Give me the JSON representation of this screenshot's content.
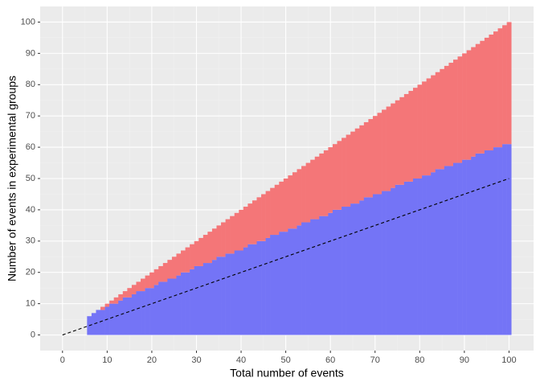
{
  "chart_data": {
    "type": "bar",
    "stacked": true,
    "x_label": "Total number of events",
    "y_label": "Number of events in experimental groups",
    "x": [
      6,
      7,
      8,
      9,
      10,
      11,
      12,
      13,
      14,
      15,
      16,
      17,
      18,
      19,
      20,
      21,
      22,
      23,
      24,
      25,
      26,
      27,
      28,
      29,
      30,
      31,
      32,
      33,
      34,
      35,
      36,
      37,
      38,
      39,
      40,
      41,
      42,
      43,
      44,
      45,
      46,
      47,
      48,
      49,
      50,
      51,
      52,
      53,
      54,
      55,
      56,
      57,
      58,
      59,
      60,
      61,
      62,
      63,
      64,
      65,
      66,
      67,
      68,
      69,
      70,
      71,
      72,
      73,
      74,
      75,
      76,
      77,
      78,
      79,
      80,
      81,
      82,
      83,
      84,
      85,
      86,
      87,
      88,
      89,
      90,
      91,
      92,
      93,
      94,
      95,
      96,
      97,
      98,
      99,
      100
    ],
    "series": [
      {
        "color": "#7474f6",
        "values": [
          6,
          7,
          8,
          8,
          9,
          10,
          10,
          11,
          12,
          12,
          13,
          14,
          14,
          15,
          15,
          16,
          17,
          17,
          18,
          18,
          19,
          20,
          20,
          21,
          22,
          22,
          23,
          23,
          24,
          25,
          25,
          26,
          26,
          27,
          27,
          28,
          29,
          29,
          30,
          30,
          31,
          32,
          32,
          33,
          33,
          34,
          34,
          35,
          36,
          36,
          37,
          37,
          38,
          38,
          39,
          40,
          40,
          41,
          41,
          42,
          42,
          43,
          44,
          44,
          45,
          45,
          46,
          46,
          47,
          48,
          48,
          49,
          49,
          50,
          50,
          51,
          51,
          52,
          53,
          53,
          54,
          54,
          55,
          55,
          56,
          56,
          57,
          58,
          58,
          59,
          59,
          60,
          60,
          61,
          61
        ]
      },
      {
        "color": "#f47678",
        "values": [
          0,
          0,
          0,
          1,
          1,
          1,
          2,
          2,
          2,
          3,
          3,
          3,
          4,
          4,
          5,
          5,
          5,
          6,
          6,
          7,
          7,
          7,
          8,
          8,
          8,
          9,
          9,
          10,
          10,
          10,
          11,
          11,
          12,
          12,
          13,
          13,
          13,
          14,
          14,
          15,
          15,
          15,
          16,
          16,
          17,
          17,
          18,
          18,
          18,
          19,
          19,
          20,
          20,
          21,
          21,
          21,
          22,
          22,
          23,
          23,
          24,
          24,
          24,
          25,
          25,
          26,
          26,
          27,
          27,
          27,
          28,
          28,
          29,
          29,
          30,
          30,
          31,
          31,
          31,
          32,
          32,
          33,
          33,
          34,
          34,
          35,
          35,
          35,
          36,
          36,
          37,
          37,
          38,
          38,
          39
        ]
      }
    ],
    "reference_line": {
      "type": "line",
      "x": [
        0,
        100
      ],
      "values": [
        0,
        50
      ],
      "color": "#000000",
      "dashed": true
    },
    "xlim": [
      -5,
      105.5
    ],
    "ylim": [
      -5,
      105
    ],
    "xticks": [
      0,
      10,
      20,
      30,
      40,
      50,
      60,
      70,
      80,
      90,
      100
    ],
    "yticks": [
      0,
      10,
      20,
      30,
      40,
      50,
      60,
      70,
      80,
      90,
      100
    ],
    "grid": true
  }
}
